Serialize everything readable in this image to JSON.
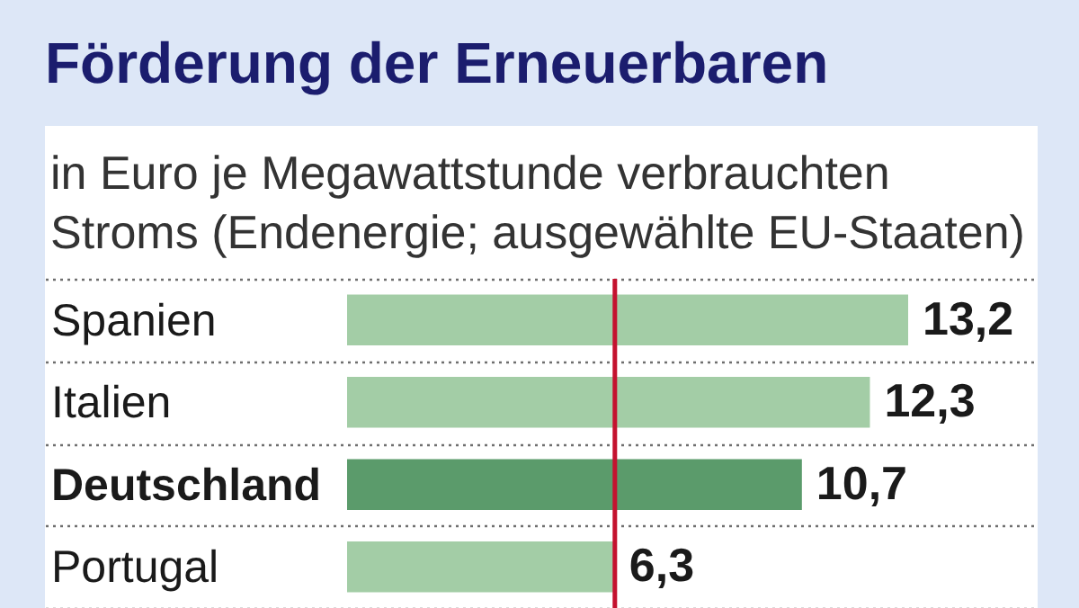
{
  "chart_data": {
    "type": "bar",
    "orientation": "horizontal",
    "title": "Förderung der Erneuerbaren",
    "subtitle": "in Euro je Megawattstunde verbrauchten Stroms (Endenergie; ausgewählte EU-Staaten)",
    "categories": [
      "Spanien",
      "Italien",
      "Deutschland",
      "Portugal"
    ],
    "values": [
      13.2,
      12.3,
      10.7,
      6.3
    ],
    "colors": [
      "#a3cda6",
      "#a3cda6",
      "#5b9b6b",
      "#a3cda6"
    ],
    "value_labels": [
      "13,2",
      "12,3",
      "10,7",
      "6,3"
    ],
    "ref_lines": [
      {
        "axis": "x",
        "value": 6.3,
        "color": "#c4122f"
      }
    ],
    "grid": "y"
  }
}
